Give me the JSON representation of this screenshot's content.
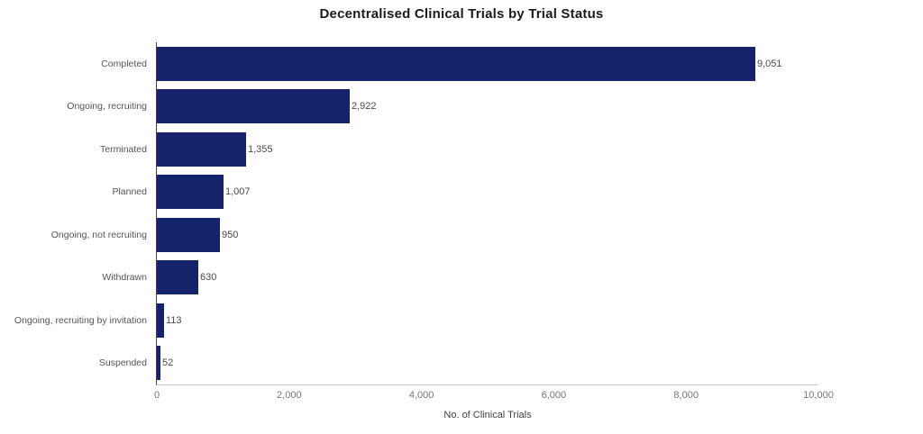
{
  "chart_data": {
    "type": "bar",
    "orientation": "horizontal",
    "title": "Decentralised Clinical Trials by Trial Status",
    "xlabel": "No. of Clinical Trials",
    "ylabel": "",
    "categories": [
      "Completed",
      "Ongoing, recruiting",
      "Terminated",
      "Planned",
      "Ongoing, not recruiting",
      "Withdrawn",
      "Ongoing, recruiting by invitation",
      "Suspended"
    ],
    "values": [
      9051,
      2922,
      1355,
      1007,
      950,
      630,
      113,
      52
    ],
    "value_labels": [
      "9,051",
      "2,922",
      "1,355",
      "1,007",
      "950",
      "630",
      "113",
      "52"
    ],
    "xlim": [
      0,
      10000
    ],
    "xticks": {
      "values": [
        0,
        2000,
        4000,
        6000,
        8000,
        10000
      ],
      "labels": [
        "0",
        "2,000",
        "4,000",
        "6,000",
        "8,000",
        "10,000"
      ]
    },
    "grid": false,
    "legend": false,
    "colors": {
      "bar": "#14236a",
      "title_text": "#1b1b1b",
      "category_text": "#555555",
      "value_text": "#4a4a4a",
      "tick_text": "#757575",
      "axis_label_text": "#424242",
      "y_axis_line": "#454545",
      "x_axis_line": "#c8c8c8",
      "background": "#ffffff"
    }
  }
}
